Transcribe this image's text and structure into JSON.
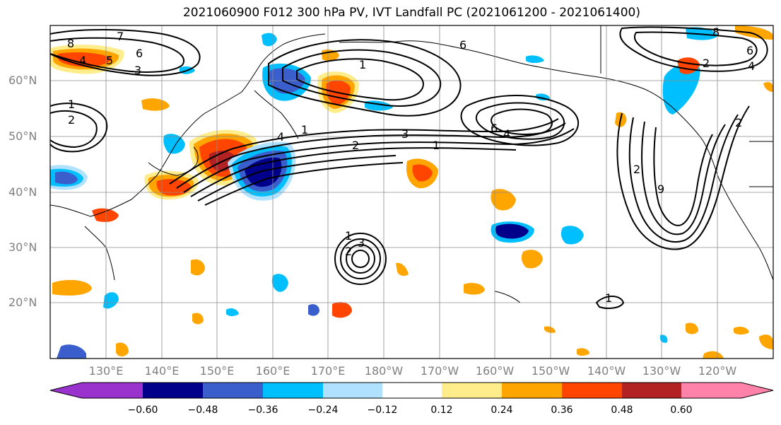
{
  "title": "2021060900 F012 300 hPa PV, IVT Landfall PC (2021061200 - 2021061400)",
  "lat_labels": [
    "60°N",
    "50°N",
    "40°N",
    "30°N",
    "20°N"
  ],
  "lon_labels": [
    "130°E",
    "140°E",
    "150°E",
    "160°E",
    "170°E",
    "180°W",
    "170°W",
    "160°W",
    "150°W",
    "140°W",
    "130°W",
    "120°W"
  ],
  "colorbar": {
    "ticks": [
      "−0.60",
      "−0.48",
      "−0.36",
      "−0.24",
      "−0.12",
      "0.12",
      "0.24",
      "0.36",
      "0.48",
      "0.60"
    ],
    "colors": [
      "#9a32cd",
      "#00008b",
      "#3a5fcd",
      "#00bfff",
      "#b0e2ff",
      "#ffffff",
      "#ffec8b",
      "#ffa500",
      "#ff4500",
      "#b22222",
      "#ff82ab"
    ]
  },
  "contour_labels": [
    "8",
    "7",
    "6",
    "5",
    "4",
    "3",
    "2",
    "1",
    "8",
    "6",
    "4",
    "2",
    "1",
    "2",
    "3",
    "4",
    "6",
    "1",
    "2",
    "9",
    "1",
    "3",
    "2",
    "1",
    "6",
    "4",
    "2",
    "1"
  ]
}
